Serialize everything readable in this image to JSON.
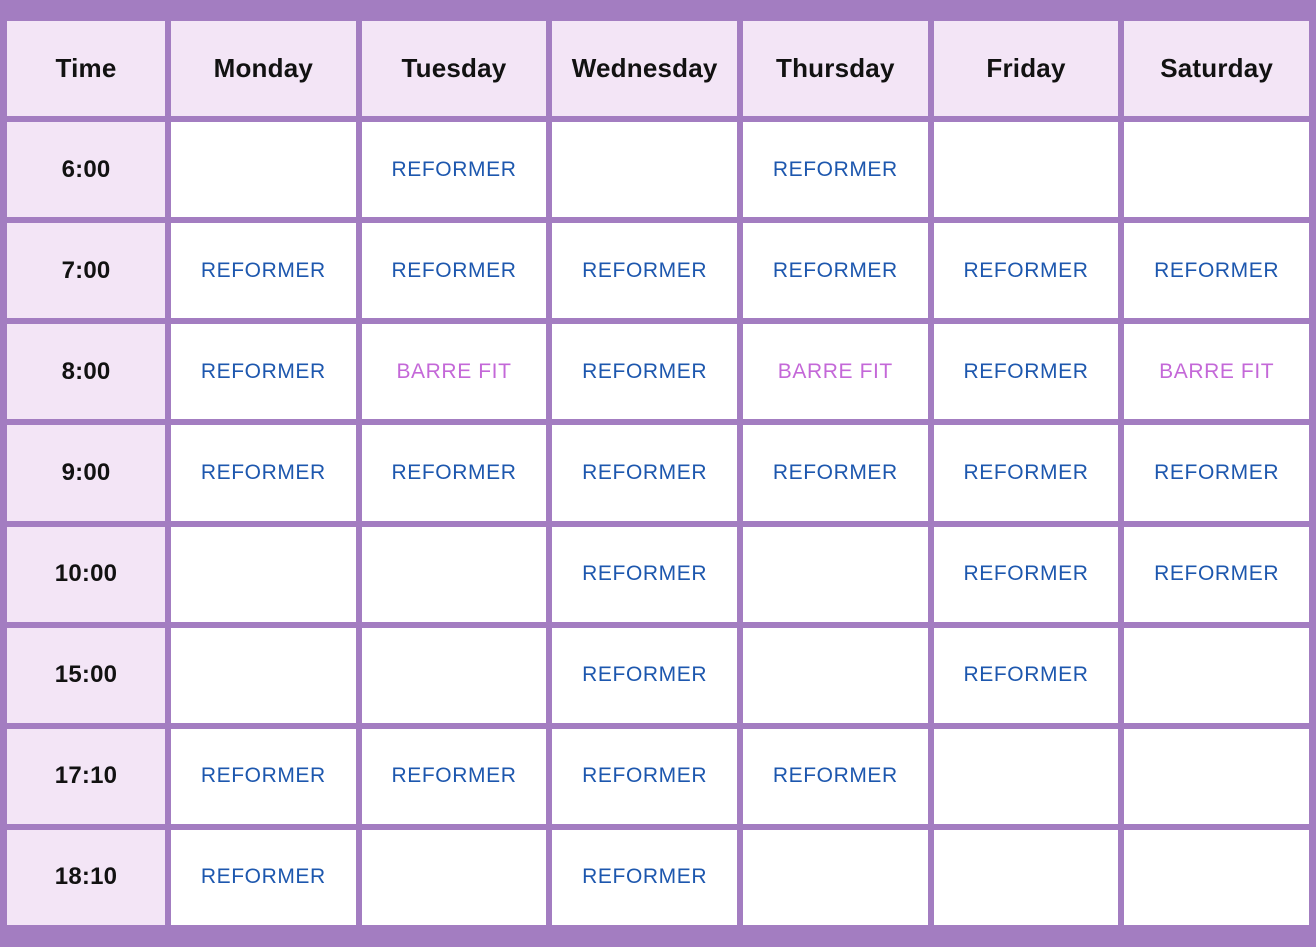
{
  "colors": {
    "frame": "#a37dc1",
    "header_bg": "#f3e5f6",
    "header_text": "#121212",
    "cell_bg": "#ffffff",
    "reformer": "#1d57ae",
    "barre_fit": "#c468d8"
  },
  "chart_data": {
    "type": "table",
    "columns": [
      "Time",
      "Monday",
      "Tuesday",
      "Wednesday",
      "Thursday",
      "Friday",
      "Saturday"
    ],
    "rows": [
      {
        "time": "6:00",
        "cells": [
          "",
          "REFORMER",
          "",
          "REFORMER",
          "",
          ""
        ]
      },
      {
        "time": "7:00",
        "cells": [
          "REFORMER",
          "REFORMER",
          "REFORMER",
          "REFORMER",
          "REFORMER",
          "REFORMER"
        ]
      },
      {
        "time": "8:00",
        "cells": [
          "REFORMER",
          "BARRE FIT",
          "REFORMER",
          "BARRE FIT",
          "REFORMER",
          "BARRE FIT"
        ]
      },
      {
        "time": "9:00",
        "cells": [
          "REFORMER",
          "REFORMER",
          "REFORMER",
          "REFORMER",
          "REFORMER",
          "REFORMER"
        ]
      },
      {
        "time": "10:00",
        "cells": [
          "",
          "",
          "REFORMER",
          "",
          "REFORMER",
          "REFORMER"
        ]
      },
      {
        "time": "15:00",
        "cells": [
          "",
          "",
          "REFORMER",
          "",
          "REFORMER",
          ""
        ]
      },
      {
        "time": "17:10",
        "cells": [
          "REFORMER",
          "REFORMER",
          "REFORMER",
          "REFORMER",
          "",
          ""
        ]
      },
      {
        "time": "18:10",
        "cells": [
          "REFORMER",
          "",
          "REFORMER",
          "",
          "",
          ""
        ]
      }
    ]
  }
}
